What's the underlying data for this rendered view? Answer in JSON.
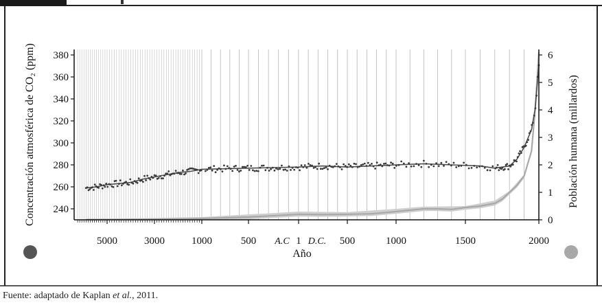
{
  "caption": {
    "prefix": "Fuente: adaptado de Kaplan ",
    "italic": "et al.",
    "suffix": ", 2011."
  },
  "colors": {
    "co2": "#4d4d4d",
    "population": "#a9a9a9",
    "band": "#cfcfcf",
    "frame": "#222222",
    "header_block": "#1a1a1a"
  },
  "chart_data": {
    "type": "line",
    "xlabel": "Año",
    "era_labels": [
      "A.C",
      "D.C."
    ],
    "x_ticks": [
      "5000",
      "3000",
      "1000",
      "500",
      "1",
      "500",
      "1000",
      "1500",
      "2000"
    ],
    "x_tick_values": [
      -5000,
      -3000,
      -1000,
      -500,
      1,
      500,
      1000,
      1500,
      2000
    ],
    "y_left": {
      "label": "Concentración atmosférica de CO₂ (ppm)",
      "ticks": [
        "240",
        "260",
        "280",
        "300",
        "320",
        "340",
        "360",
        "380"
      ],
      "range": [
        230,
        385
      ],
      "marker": "dark-gray-circle"
    },
    "y_right": {
      "label": "Población humana (millardos)",
      "ticks": [
        "0",
        "1",
        "2",
        "3",
        "4",
        "5",
        "6"
      ],
      "range": [
        0,
        6.2
      ],
      "marker": "light-gray-circle"
    },
    "series": [
      {
        "axis": "left",
        "style": "line+points",
        "points": [
          [
            -6000,
            259
          ],
          [
            -5500,
            260
          ],
          [
            -5000,
            262
          ],
          [
            -4500,
            263
          ],
          [
            -4000,
            264
          ],
          [
            -3500,
            267
          ],
          [
            -3000,
            269
          ],
          [
            -2500,
            271
          ],
          [
            -2000,
            273
          ],
          [
            -1500,
            274
          ],
          [
            -1000,
            276
          ],
          [
            -500,
            277
          ],
          [
            1,
            278
          ],
          [
            250,
            279
          ],
          [
            500,
            278
          ],
          [
            750,
            279
          ],
          [
            1000,
            280
          ],
          [
            1200,
            281
          ],
          [
            1400,
            280
          ],
          [
            1600,
            279
          ],
          [
            1700,
            277
          ],
          [
            1800,
            279
          ],
          [
            1850,
            285
          ],
          [
            1900,
            296
          ],
          [
            1950,
            312
          ],
          [
            1975,
            331
          ],
          [
            2000,
            370
          ]
        ]
      },
      {
        "axis": "right",
        "style": "line+band",
        "points": [
          [
            -6000,
            0.01
          ],
          [
            -3000,
            0.02
          ],
          [
            -1000,
            0.05
          ],
          [
            -500,
            0.1
          ],
          [
            1,
            0.2
          ],
          [
            250,
            0.19
          ],
          [
            500,
            0.2
          ],
          [
            750,
            0.22
          ],
          [
            1000,
            0.3
          ],
          [
            1100,
            0.35
          ],
          [
            1200,
            0.4
          ],
          [
            1300,
            0.4
          ],
          [
            1400,
            0.38
          ],
          [
            1500,
            0.45
          ],
          [
            1600,
            0.5
          ],
          [
            1700,
            0.6
          ],
          [
            1750,
            0.75
          ],
          [
            1800,
            1.0
          ],
          [
            1850,
            1.25
          ],
          [
            1900,
            1.6
          ],
          [
            1950,
            2.5
          ],
          [
            1975,
            4.0
          ],
          [
            2000,
            6.1
          ]
        ],
        "band": [
          [
            -6000,
            0.02
          ],
          [
            -1000,
            0.1
          ],
          [
            1,
            0.3
          ],
          [
            500,
            0.28
          ],
          [
            1000,
            0.4
          ],
          [
            1200,
            0.48
          ],
          [
            1500,
            0.5
          ],
          [
            1700,
            0.7
          ],
          [
            1800,
            1.05
          ],
          [
            1900,
            1.65
          ],
          [
            1950,
            2.55
          ],
          [
            2000,
            6.1
          ]
        ]
      }
    ]
  }
}
